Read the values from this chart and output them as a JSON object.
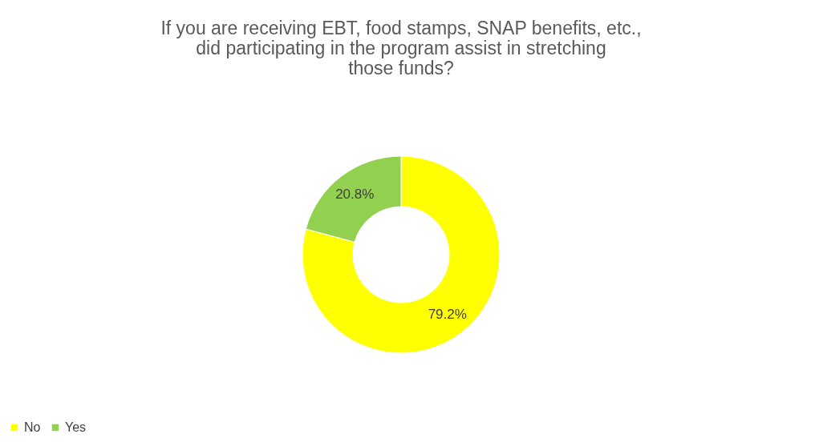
{
  "chart_data": {
    "type": "donut",
    "title": [
      "If you are receiving EBT, food stamps, SNAP benefits, etc.,",
      "did participating in the program assist in stretching",
      "those funds?"
    ],
    "categories": [
      "No",
      "Yes"
    ],
    "values": [
      79.2,
      20.8
    ],
    "colors": [
      "#ffff00",
      "#92d050"
    ],
    "value_labels": [
      "79.2%",
      "20.8%"
    ],
    "legend": "bottom"
  }
}
